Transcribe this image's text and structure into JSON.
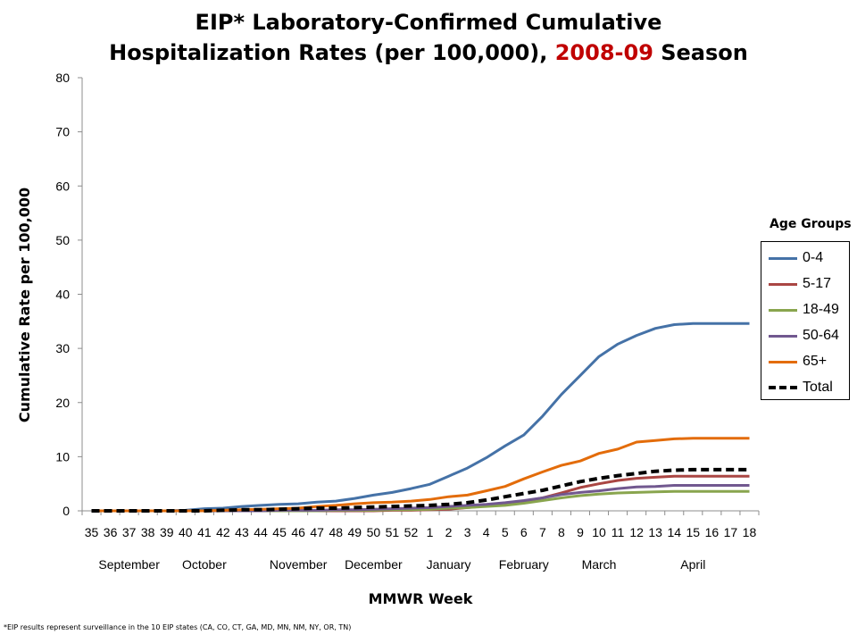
{
  "title": {
    "line1": "EIP* Laboratory-Confirmed Cumulative",
    "line2_pre": "Hospitalization Rates (per 100,000), ",
    "line2_season": "2008-09",
    "line2_post": " Season"
  },
  "footnote": "*EIP results represent surveillance in the 10 EIP states (CA, CO, CT, GA, MD, MN, NM, NY, OR, TN)",
  "legend_title": "Age Groups",
  "colors": {
    "highlight": "#c00000",
    "axis": "#8c8c8c"
  },
  "chart_data": {
    "type": "line",
    "xlabel": "MMWR Week",
    "ylabel": "Cumulative Rate per 100,000",
    "ylim": [
      0,
      80
    ],
    "yticks": [
      0,
      10,
      20,
      30,
      40,
      50,
      60,
      70,
      80
    ],
    "grid": false,
    "legend_position": "right",
    "categories": [
      "35",
      "36",
      "37",
      "38",
      "39",
      "40",
      "41",
      "42",
      "43",
      "44",
      "45",
      "46",
      "47",
      "48",
      "49",
      "50",
      "51",
      "52",
      "1",
      "2",
      "3",
      "4",
      "5",
      "6",
      "7",
      "8",
      "9",
      "10",
      "11",
      "12",
      "13",
      "14",
      "15",
      "16",
      "17",
      "18"
    ],
    "months": [
      {
        "label": "September",
        "week": "37"
      },
      {
        "label": "October",
        "week": "41"
      },
      {
        "label": "November",
        "week": "46"
      },
      {
        "label": "December",
        "week": "50"
      },
      {
        "label": "January",
        "week": "2"
      },
      {
        "label": "February",
        "week": "6"
      },
      {
        "label": "March",
        "week": "10"
      },
      {
        "label": "April",
        "week": "15"
      }
    ],
    "series": [
      {
        "name": "0-4",
        "color": "#4572a7",
        "dash": "solid",
        "values": [
          0,
          0,
          0,
          0,
          0,
          0.1,
          0.4,
          0.5,
          0.8,
          1.0,
          1.2,
          1.3,
          1.6,
          1.8,
          2.3,
          2.9,
          3.4,
          4.1,
          4.9,
          6.4,
          7.9,
          9.8,
          12.0,
          14.0,
          17.5,
          21.5,
          25.0,
          28.5,
          30.8,
          32.4,
          33.7,
          34.4,
          34.6,
          34.6,
          34.6,
          34.6
        ]
      },
      {
        "name": "5-17",
        "color": "#aa4643",
        "dash": "solid",
        "values": [
          0,
          0,
          0,
          0,
          0,
          0,
          0,
          0,
          0,
          0,
          0,
          0,
          0,
          0,
          0,
          0,
          0.1,
          0.1,
          0.2,
          0.3,
          0.6,
          0.9,
          1.3,
          1.8,
          2.4,
          3.3,
          4.3,
          5.0,
          5.6,
          6.0,
          6.2,
          6.4,
          6.4,
          6.4,
          6.4,
          6.4
        ]
      },
      {
        "name": "18-49",
        "color": "#89a54e",
        "dash": "solid",
        "values": [
          0,
          0,
          0,
          0,
          0,
          0,
          0,
          0,
          0,
          0,
          0,
          0,
          0,
          0.1,
          0.1,
          0.1,
          0.2,
          0.2,
          0.3,
          0.5,
          0.6,
          0.8,
          1.0,
          1.4,
          1.9,
          2.4,
          2.8,
          3.1,
          3.3,
          3.4,
          3.5,
          3.6,
          3.6,
          3.6,
          3.6,
          3.6
        ]
      },
      {
        "name": "50-64",
        "color": "#71588f",
        "dash": "solid",
        "values": [
          0,
          0,
          0,
          0,
          0,
          0,
          0,
          0,
          0,
          0,
          0.1,
          0.1,
          0.1,
          0.2,
          0.2,
          0.3,
          0.4,
          0.5,
          0.6,
          0.8,
          1.0,
          1.2,
          1.5,
          1.9,
          2.4,
          3.0,
          3.4,
          3.7,
          4.1,
          4.4,
          4.5,
          4.7,
          4.7,
          4.7,
          4.7,
          4.7
        ]
      },
      {
        "name": "65+",
        "color": "#e36c0a",
        "dash": "solid",
        "values": [
          0,
          0,
          0,
          0,
          0,
          0,
          0,
          0.1,
          0.2,
          0.3,
          0.4,
          0.5,
          0.8,
          1.0,
          1.3,
          1.5,
          1.6,
          1.8,
          2.1,
          2.6,
          2.9,
          3.7,
          4.5,
          5.9,
          7.2,
          8.4,
          9.2,
          10.6,
          11.4,
          12.7,
          13.0,
          13.3,
          13.4,
          13.4,
          13.4,
          13.4
        ]
      },
      {
        "name": "Total",
        "color": "#000000",
        "dash": "dashed",
        "values": [
          0,
          0,
          0,
          0,
          0,
          0,
          0,
          0.1,
          0.2,
          0.2,
          0.3,
          0.4,
          0.5,
          0.5,
          0.6,
          0.7,
          0.8,
          0.9,
          1.0,
          1.2,
          1.5,
          2.0,
          2.6,
          3.2,
          3.8,
          4.6,
          5.4,
          6.0,
          6.5,
          6.9,
          7.3,
          7.5,
          7.6,
          7.6,
          7.6,
          7.6
        ]
      }
    ]
  }
}
